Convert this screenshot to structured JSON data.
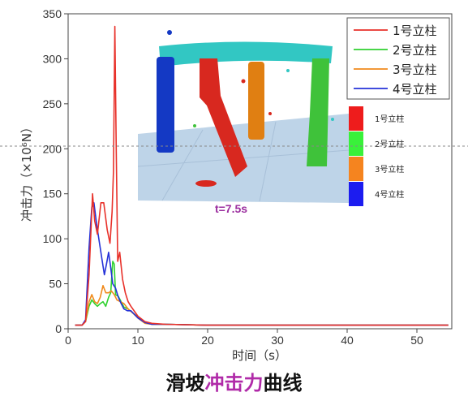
{
  "chart_data": {
    "type": "line",
    "xlabel": "时间（s）",
    "ylabel": "冲击力（×10⁶N）",
    "xlim": [
      0,
      55
    ],
    "ylim": [
      0,
      350
    ],
    "xticks": [
      0,
      10,
      20,
      30,
      40,
      50
    ],
    "yticks": [
      0,
      50,
      100,
      150,
      200,
      250,
      300,
      350
    ],
    "grid": false,
    "legend_position": "top-right",
    "series": [
      {
        "name": "1号立柱",
        "color": "#e8312a",
        "points": [
          [
            1,
            4
          ],
          [
            2,
            4
          ],
          [
            2.5,
            8
          ],
          [
            3,
            60
          ],
          [
            3.5,
            150
          ],
          [
            3.8,
            120
          ],
          [
            4.2,
            105
          ],
          [
            4.7,
            140
          ],
          [
            5.1,
            140
          ],
          [
            5.6,
            110
          ],
          [
            6,
            95
          ],
          [
            6.3,
            130
          ],
          [
            6.5,
            175
          ],
          [
            6.7,
            336
          ],
          [
            6.9,
            200
          ],
          [
            7.1,
            75
          ],
          [
            7.4,
            85
          ],
          [
            7.8,
            55
          ],
          [
            8.2,
            40
          ],
          [
            8.6,
            30
          ],
          [
            9,
            25
          ],
          [
            10,
            14
          ],
          [
            11,
            8
          ],
          [
            12,
            6
          ],
          [
            14,
            5
          ],
          [
            20,
            4
          ],
          [
            30,
            4
          ],
          [
            40,
            4
          ],
          [
            50,
            4
          ],
          [
            54.5,
            4
          ]
        ]
      },
      {
        "name": "2号立柱",
        "color": "#2fd12f",
        "points": [
          [
            1,
            4
          ],
          [
            2,
            4
          ],
          [
            2.5,
            8
          ],
          [
            3,
            25
          ],
          [
            3.4,
            32
          ],
          [
            3.8,
            28
          ],
          [
            4.2,
            25
          ],
          [
            4.6,
            28
          ],
          [
            5,
            30
          ],
          [
            5.4,
            25
          ],
          [
            5.8,
            35
          ],
          [
            6.1,
            40
          ],
          [
            6.4,
            75
          ],
          [
            6.6,
            72
          ],
          [
            6.8,
            38
          ],
          [
            7.2,
            36
          ],
          [
            7.6,
            30
          ],
          [
            8,
            24
          ],
          [
            8.6,
            22
          ],
          [
            9.2,
            18
          ],
          [
            10,
            13
          ],
          [
            11,
            7
          ],
          [
            12,
            5
          ],
          [
            14,
            5
          ],
          [
            20,
            4
          ],
          [
            30,
            4
          ],
          [
            40,
            4
          ],
          [
            50,
            4
          ],
          [
            54.5,
            4
          ]
        ]
      },
      {
        "name": "3号立柱",
        "color": "#f08a1c",
        "points": [
          [
            1,
            4
          ],
          [
            2,
            4
          ],
          [
            2.5,
            8
          ],
          [
            3,
            30
          ],
          [
            3.4,
            38
          ],
          [
            3.8,
            30
          ],
          [
            4.2,
            28
          ],
          [
            4.6,
            35
          ],
          [
            5,
            48
          ],
          [
            5.4,
            40
          ],
          [
            5.8,
            40
          ],
          [
            6.2,
            42
          ],
          [
            6.6,
            38
          ],
          [
            7,
            32
          ],
          [
            7.5,
            30
          ],
          [
            8,
            28
          ],
          [
            8.6,
            22
          ],
          [
            9.2,
            18
          ],
          [
            10,
            12
          ],
          [
            11,
            6
          ],
          [
            12,
            5
          ],
          [
            14,
            5
          ],
          [
            20,
            4
          ],
          [
            30,
            4
          ],
          [
            40,
            4
          ],
          [
            50,
            4
          ],
          [
            54.5,
            4
          ]
        ]
      },
      {
        "name": "4号立柱",
        "color": "#2532d8",
        "points": [
          [
            1,
            4
          ],
          [
            2,
            4
          ],
          [
            2.5,
            10
          ],
          [
            3,
            90
          ],
          [
            3.4,
            135
          ],
          [
            3.7,
            140
          ],
          [
            4.1,
            115
          ],
          [
            4.5,
            95
          ],
          [
            4.9,
            75
          ],
          [
            5.2,
            60
          ],
          [
            5.5,
            72
          ],
          [
            5.8,
            85
          ],
          [
            6.1,
            68
          ],
          [
            6.4,
            50
          ],
          [
            6.8,
            45
          ],
          [
            7.2,
            35
          ],
          [
            7.6,
            28
          ],
          [
            8,
            22
          ],
          [
            8.5,
            20
          ],
          [
            9,
            20
          ],
          [
            10,
            12
          ],
          [
            11,
            7
          ],
          [
            12,
            5
          ],
          [
            14,
            5
          ],
          [
            20,
            4
          ],
          [
            30,
            4
          ],
          [
            40,
            4
          ],
          [
            50,
            4
          ],
          [
            54.5,
            4
          ]
        ]
      }
    ]
  },
  "inset": {
    "time_label": "t=7.5s",
    "color_key": [
      {
        "label": "1号立柱",
        "color": "#ee1c1c"
      },
      {
        "label": "2号立柱",
        "color": "#39f13a"
      },
      {
        "label": "3号立柱",
        "color": "#f5841f"
      },
      {
        "label": "4号立柱",
        "color": "#1c1cf0"
      }
    ],
    "colors": {
      "beam": "#32c7c3",
      "slope": "#b7cfe6",
      "post1": "#d8281f",
      "post2": "#3fc23a",
      "post3": "#e07f12",
      "post4": "#1439c4"
    }
  },
  "caption": {
    "part1": "滑坡",
    "highlight": "冲击力",
    "part2": "曲线"
  }
}
